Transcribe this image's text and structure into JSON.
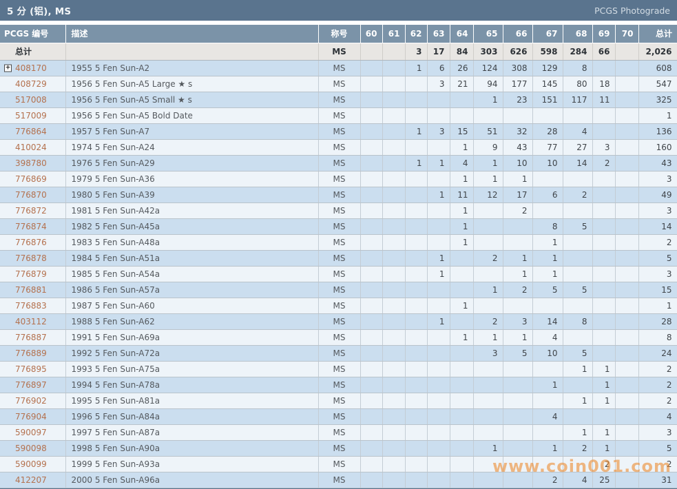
{
  "header": {
    "title": "5 分 (铝), MS",
    "link": "PCGS Photograde"
  },
  "watermark": "www.coin001.com",
  "colors": {
    "titlebar_bg": "#5a748e",
    "header_bg": "#7b93a8",
    "row_blue": "#cbdeef",
    "row_light": "#eef4f9",
    "total_row_bg": "#e8e6e3",
    "pcgs_number_color": "#b4714e",
    "watermark_color": "#ed8b2f"
  },
  "table": {
    "columns": [
      "PCGS 编号",
      "描述",
      "称号",
      "60",
      "61",
      "62",
      "63",
      "64",
      "65",
      "66",
      "67",
      "68",
      "69",
      "70",
      "总计"
    ],
    "total_row": {
      "label": "总计",
      "desc": "",
      "designation": "MS",
      "grades": [
        "",
        "",
        "3",
        "17",
        "84",
        "303",
        "626",
        "598",
        "284",
        "66",
        ""
      ],
      "total": "2,026"
    },
    "rows": [
      {
        "pcgs": "408170",
        "expandable": true,
        "desc": "1955 5 Fen Sun-A2",
        "designation": "MS",
        "grades": [
          "",
          "",
          "1",
          "6",
          "26",
          "124",
          "308",
          "129",
          "8",
          "",
          ""
        ],
        "total": "608"
      },
      {
        "pcgs": "408729",
        "expandable": false,
        "desc": "1956 5 Fen Sun-A5 Large ★ s",
        "designation": "MS",
        "grades": [
          "",
          "",
          "",
          "3",
          "21",
          "94",
          "177",
          "145",
          "80",
          "18",
          ""
        ],
        "total": "547"
      },
      {
        "pcgs": "517008",
        "expandable": false,
        "desc": "1956 5 Fen Sun-A5 Small ★ s",
        "designation": "MS",
        "grades": [
          "",
          "",
          "",
          "",
          "",
          "1",
          "23",
          "151",
          "117",
          "11",
          ""
        ],
        "total": "325"
      },
      {
        "pcgs": "517009",
        "expandable": false,
        "desc": "1956 5 Fen Sun-A5 Bold Date",
        "designation": "MS",
        "grades": [
          "",
          "",
          "",
          "",
          "",
          "",
          "",
          "",
          "",
          "",
          ""
        ],
        "total": "1"
      },
      {
        "pcgs": "776864",
        "expandable": false,
        "desc": "1957 5 Fen Sun-A7",
        "designation": "MS",
        "grades": [
          "",
          "",
          "1",
          "3",
          "15",
          "51",
          "32",
          "28",
          "4",
          "",
          ""
        ],
        "total": "136"
      },
      {
        "pcgs": "410024",
        "expandable": false,
        "desc": "1974 5 Fen Sun-A24",
        "designation": "MS",
        "grades": [
          "",
          "",
          "",
          "",
          "1",
          "9",
          "43",
          "77",
          "27",
          "3",
          ""
        ],
        "total": "160"
      },
      {
        "pcgs": "398780",
        "expandable": false,
        "desc": "1976 5 Fen Sun-A29",
        "designation": "MS",
        "grades": [
          "",
          "",
          "1",
          "1",
          "4",
          "1",
          "10",
          "10",
          "14",
          "2",
          ""
        ],
        "total": "43"
      },
      {
        "pcgs": "776869",
        "expandable": false,
        "desc": "1979 5 Fen Sun-A36",
        "designation": "MS",
        "grades": [
          "",
          "",
          "",
          "",
          "1",
          "1",
          "1",
          "",
          "",
          "",
          ""
        ],
        "total": "3"
      },
      {
        "pcgs": "776870",
        "expandable": false,
        "desc": "1980 5 Fen Sun-A39",
        "designation": "MS",
        "grades": [
          "",
          "",
          "",
          "1",
          "11",
          "12",
          "17",
          "6",
          "2",
          "",
          ""
        ],
        "total": "49"
      },
      {
        "pcgs": "776872",
        "expandable": false,
        "desc": "1981 5 Fen Sun-A42a",
        "designation": "MS",
        "grades": [
          "",
          "",
          "",
          "",
          "1",
          "",
          "2",
          "",
          "",
          "",
          ""
        ],
        "total": "3"
      },
      {
        "pcgs": "776874",
        "expandable": false,
        "desc": "1982 5 Fen Sun-A45a",
        "designation": "MS",
        "grades": [
          "",
          "",
          "",
          "",
          "1",
          "",
          "",
          "8",
          "5",
          "",
          ""
        ],
        "total": "14"
      },
      {
        "pcgs": "776876",
        "expandable": false,
        "desc": "1983 5 Fen Sun-A48a",
        "designation": "MS",
        "grades": [
          "",
          "",
          "",
          "",
          "1",
          "",
          "",
          "1",
          "",
          "",
          ""
        ],
        "total": "2"
      },
      {
        "pcgs": "776878",
        "expandable": false,
        "desc": "1984 5 Fen Sun-A51a",
        "designation": "MS",
        "grades": [
          "",
          "",
          "",
          "1",
          "",
          "2",
          "1",
          "1",
          "",
          "",
          ""
        ],
        "total": "5"
      },
      {
        "pcgs": "776879",
        "expandable": false,
        "desc": "1985 5 Fen Sun-A54a",
        "designation": "MS",
        "grades": [
          "",
          "",
          "",
          "1",
          "",
          "",
          "1",
          "1",
          "",
          "",
          ""
        ],
        "total": "3"
      },
      {
        "pcgs": "776881",
        "expandable": false,
        "desc": "1986 5 Fen Sun-A57a",
        "designation": "MS",
        "grades": [
          "",
          "",
          "",
          "",
          "",
          "1",
          "2",
          "5",
          "5",
          "",
          ""
        ],
        "total": "15"
      },
      {
        "pcgs": "776883",
        "expandable": false,
        "desc": "1987 5 Fen Sun-A60",
        "designation": "MS",
        "grades": [
          "",
          "",
          "",
          "",
          "1",
          "",
          "",
          "",
          "",
          "",
          ""
        ],
        "total": "1"
      },
      {
        "pcgs": "403112",
        "expandable": false,
        "desc": "1988 5 Fen Sun-A62",
        "designation": "MS",
        "grades": [
          "",
          "",
          "",
          "1",
          "",
          "2",
          "3",
          "14",
          "8",
          "",
          ""
        ],
        "total": "28"
      },
      {
        "pcgs": "776887",
        "expandable": false,
        "desc": "1991 5 Fen Sun-A69a",
        "designation": "MS",
        "grades": [
          "",
          "",
          "",
          "",
          "1",
          "1",
          "1",
          "4",
          "",
          "",
          ""
        ],
        "total": "8"
      },
      {
        "pcgs": "776889",
        "expandable": false,
        "desc": "1992 5 Fen Sun-A72a",
        "designation": "MS",
        "grades": [
          "",
          "",
          "",
          "",
          "",
          "3",
          "5",
          "10",
          "5",
          "",
          ""
        ],
        "total": "24"
      },
      {
        "pcgs": "776895",
        "expandable": false,
        "desc": "1993 5 Fen Sun-A75a",
        "designation": "MS",
        "grades": [
          "",
          "",
          "",
          "",
          "",
          "",
          "",
          "",
          "1",
          "1",
          ""
        ],
        "total": "2"
      },
      {
        "pcgs": "776897",
        "expandable": false,
        "desc": "1994 5 Fen Sun-A78a",
        "designation": "MS",
        "grades": [
          "",
          "",
          "",
          "",
          "",
          "",
          "",
          "1",
          "",
          "1",
          ""
        ],
        "total": "2"
      },
      {
        "pcgs": "776902",
        "expandable": false,
        "desc": "1995 5 Fen Sun-A81a",
        "designation": "MS",
        "grades": [
          "",
          "",
          "",
          "",
          "",
          "",
          "",
          "",
          "1",
          "1",
          ""
        ],
        "total": "2"
      },
      {
        "pcgs": "776904",
        "expandable": false,
        "desc": "1996 5 Fen Sun-A84a",
        "designation": "MS",
        "grades": [
          "",
          "",
          "",
          "",
          "",
          "",
          "",
          "4",
          "",
          "",
          ""
        ],
        "total": "4"
      },
      {
        "pcgs": "590097",
        "expandable": false,
        "desc": "1997 5 Fen Sun-A87a",
        "designation": "MS",
        "grades": [
          "",
          "",
          "",
          "",
          "",
          "",
          "",
          "",
          "1",
          "1",
          ""
        ],
        "total": "3"
      },
      {
        "pcgs": "590098",
        "expandable": false,
        "desc": "1998 5 Fen Sun-A90a",
        "designation": "MS",
        "grades": [
          "",
          "",
          "",
          "",
          "",
          "1",
          "",
          "1",
          "2",
          "1",
          ""
        ],
        "total": "5"
      },
      {
        "pcgs": "590099",
        "expandable": false,
        "desc": "1999 5 Fen Sun-A93a",
        "designation": "MS",
        "grades": [
          "",
          "",
          "",
          "",
          "",
          "",
          "",
          "",
          "",
          "2",
          ""
        ],
        "total": "2"
      },
      {
        "pcgs": "412207",
        "expandable": false,
        "desc": "2000 5 Fen Sun-A96a",
        "designation": "MS",
        "grades": [
          "",
          "",
          "",
          "",
          "",
          "",
          "",
          "2",
          "4",
          "25",
          ""
        ],
        "total": "31"
      }
    ]
  }
}
